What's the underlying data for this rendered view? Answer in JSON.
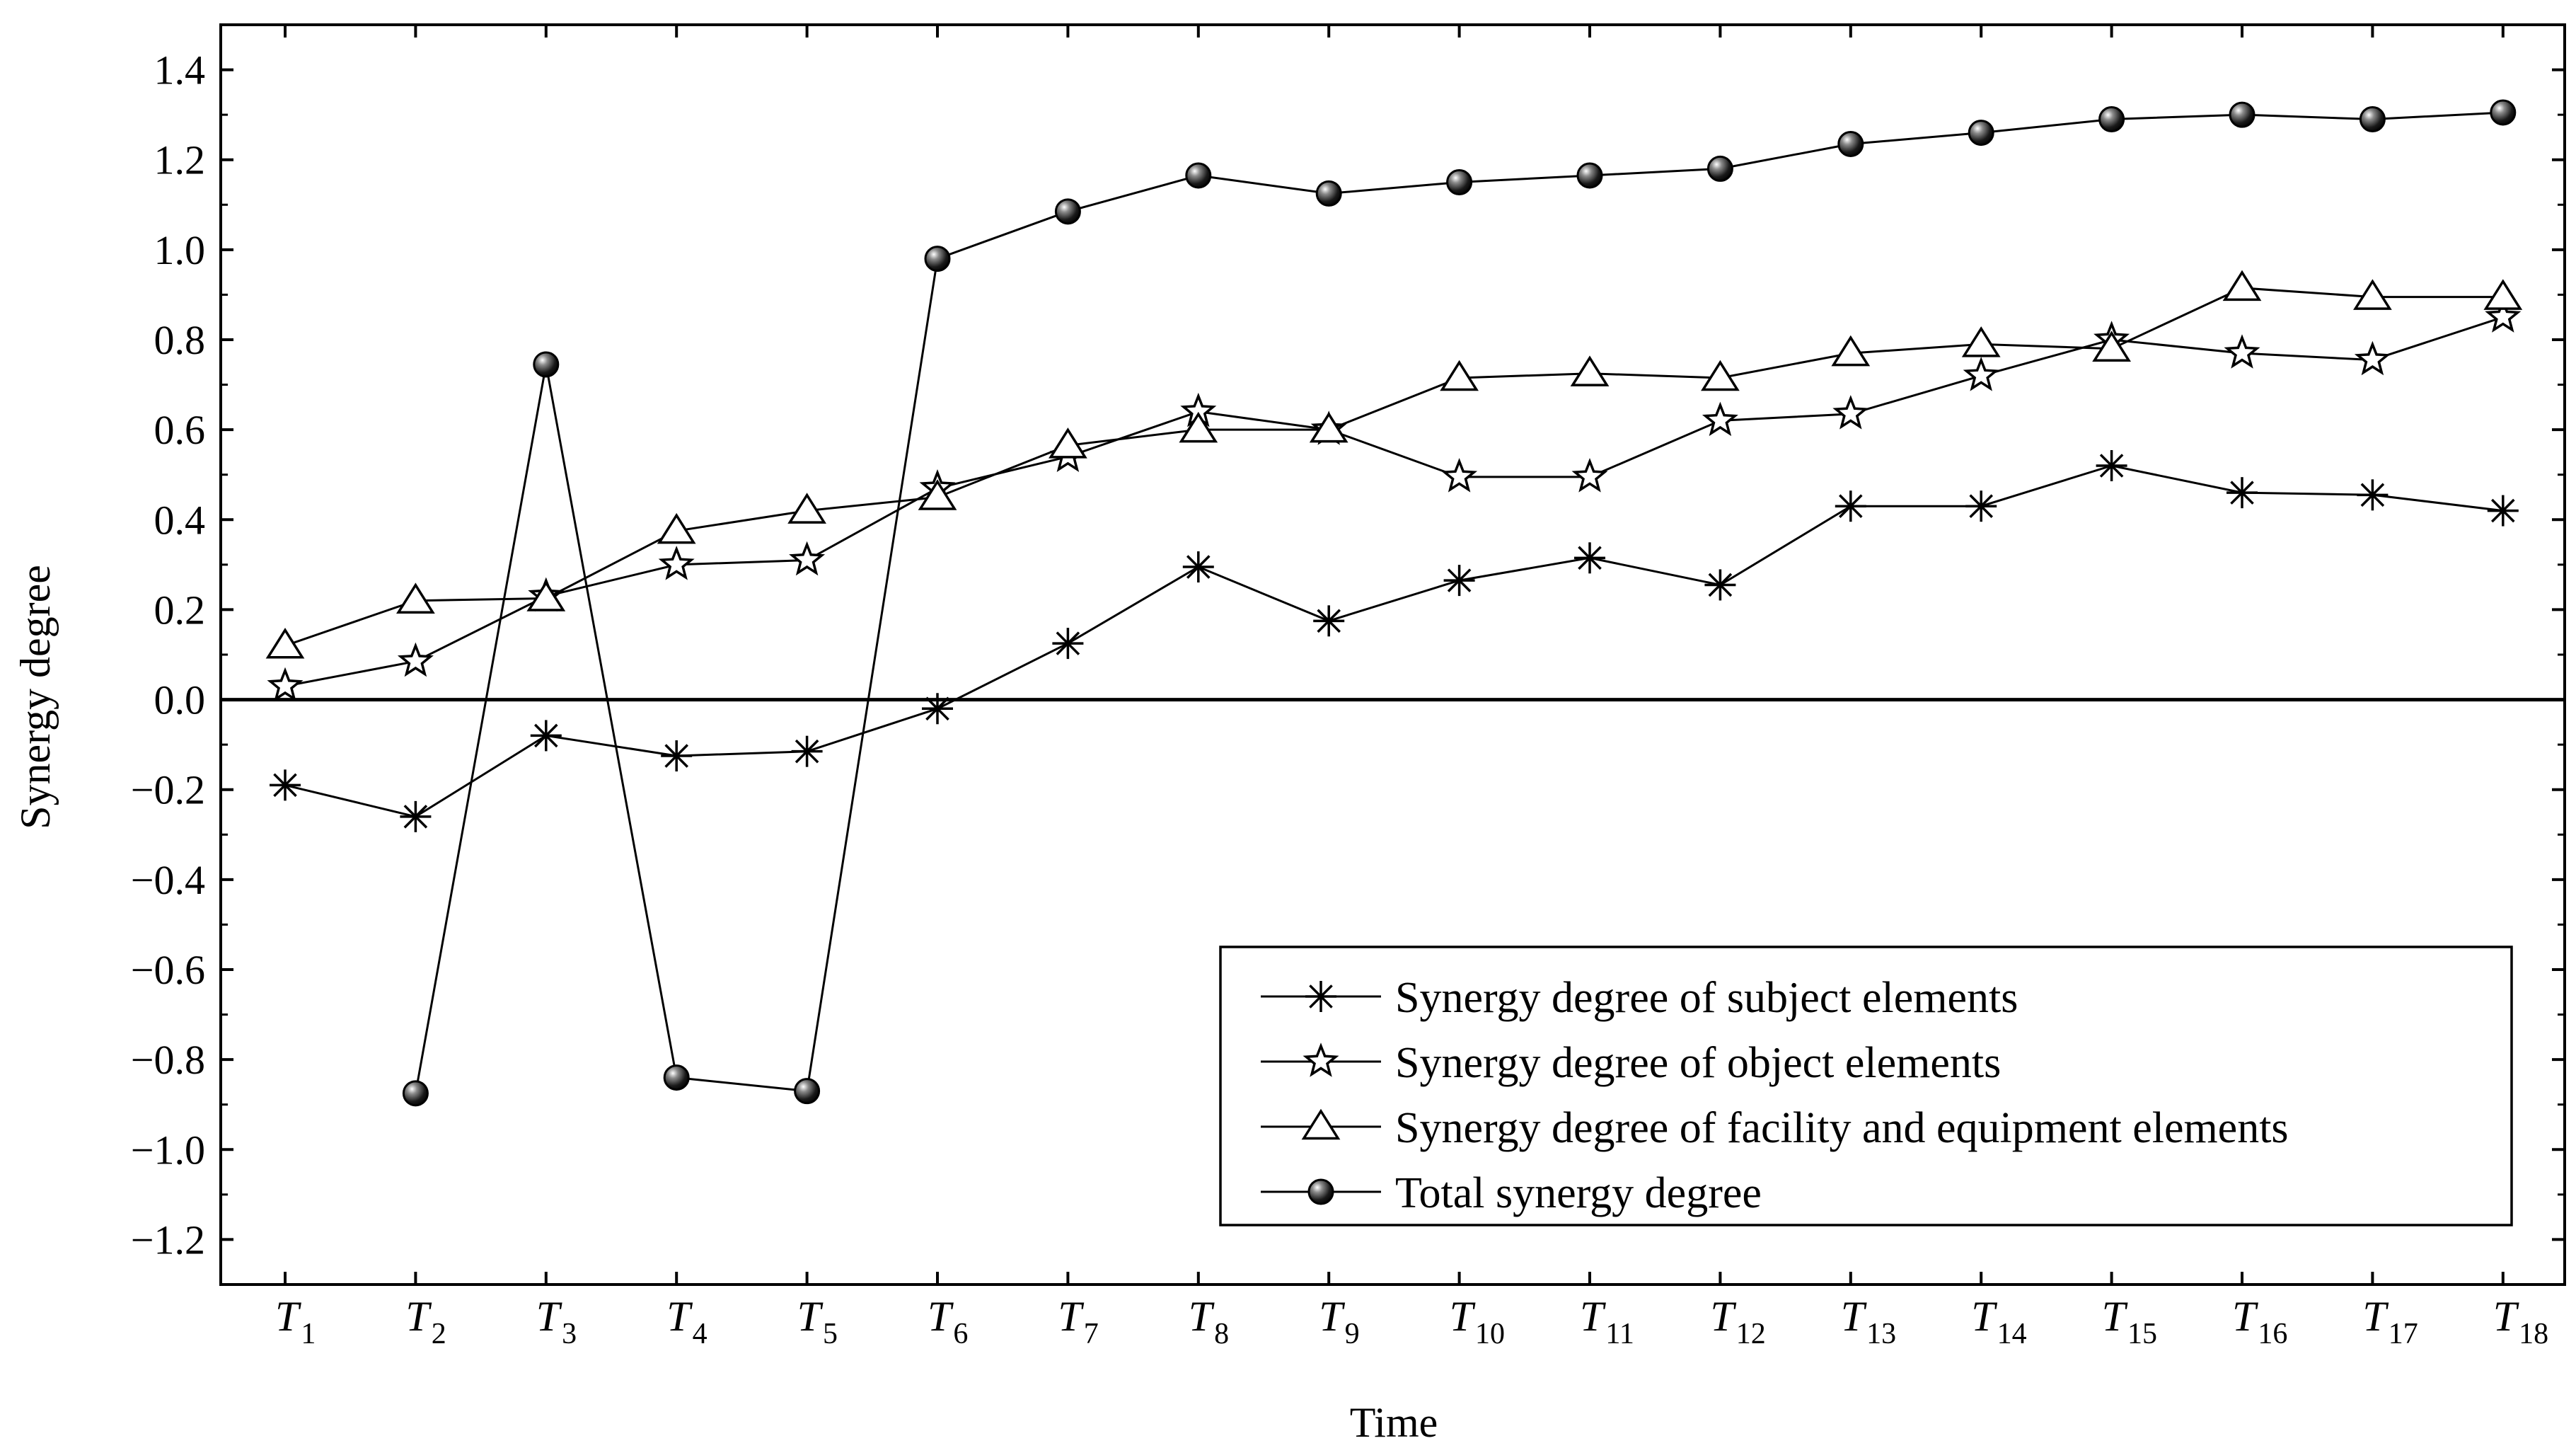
{
  "chart_data": {
    "type": "line",
    "title": "",
    "xlabel": "Time",
    "ylabel": "Synergy degree",
    "ylim": [
      -1.3,
      1.5
    ],
    "yticks": [
      "1.4",
      "1.2",
      "1.0",
      "0.8",
      "0.6",
      "0.4",
      "0.2",
      "0.0",
      "−0.2",
      "−0.4",
      "−0.6",
      "−0.8",
      "−1.0",
      "−1.2"
    ],
    "ytick_values": [
      1.4,
      1.2,
      1.0,
      0.8,
      0.6,
      0.4,
      0.2,
      0.0,
      -0.2,
      -0.4,
      -0.6,
      -0.8,
      -1.0,
      -1.2
    ],
    "categories": [
      {
        "main": "T",
        "sub": "1"
      },
      {
        "main": "T",
        "sub": "2"
      },
      {
        "main": "T",
        "sub": "3"
      },
      {
        "main": "T",
        "sub": "4"
      },
      {
        "main": "T",
        "sub": "5"
      },
      {
        "main": "T",
        "sub": "6"
      },
      {
        "main": "T",
        "sub": "7"
      },
      {
        "main": "T",
        "sub": "8"
      },
      {
        "main": "T",
        "sub": "9"
      },
      {
        "main": "T",
        "sub": "10"
      },
      {
        "main": "T",
        "sub": "11"
      },
      {
        "main": "T",
        "sub": "12"
      },
      {
        "main": "T",
        "sub": "13"
      },
      {
        "main": "T",
        "sub": "14"
      },
      {
        "main": "T",
        "sub": "15"
      },
      {
        "main": "T",
        "sub": "16"
      },
      {
        "main": "T",
        "sub": "17"
      },
      {
        "main": "T",
        "sub": "18"
      }
    ],
    "legend_position": "bottom-right",
    "series": [
      {
        "name": "Synergy degree of subject elements",
        "marker": "asterisk",
        "values": [
          -0.19,
          -0.26,
          -0.08,
          -0.125,
          -0.115,
          -0.02,
          0.125,
          0.295,
          0.175,
          0.265,
          0.315,
          0.255,
          0.43,
          0.43,
          0.52,
          0.46,
          0.455,
          0.42
        ]
      },
      {
        "name": "Synergy degree of object elements",
        "marker": "star",
        "values": [
          0.03,
          0.085,
          0.23,
          0.3,
          0.31,
          0.47,
          0.54,
          0.64,
          0.6,
          0.495,
          0.495,
          0.62,
          0.635,
          0.72,
          0.8,
          0.77,
          0.755,
          0.85
        ]
      },
      {
        "name": "Synergy degree of facility and equipment elements",
        "marker": "triangle",
        "values": [
          0.12,
          0.22,
          0.225,
          0.375,
          0.42,
          0.45,
          0.565,
          0.6,
          0.6,
          0.715,
          0.725,
          0.715,
          0.77,
          0.79,
          0.78,
          0.915,
          0.895,
          0.895
        ]
      },
      {
        "name": "Total synergy degree",
        "marker": "sphere",
        "values": [
          null,
          -0.875,
          0.745,
          -0.84,
          -0.87,
          0.98,
          1.085,
          1.165,
          1.125,
          1.15,
          1.165,
          1.18,
          1.235,
          1.26,
          1.29,
          1.3,
          1.29,
          1.305
        ]
      }
    ]
  }
}
